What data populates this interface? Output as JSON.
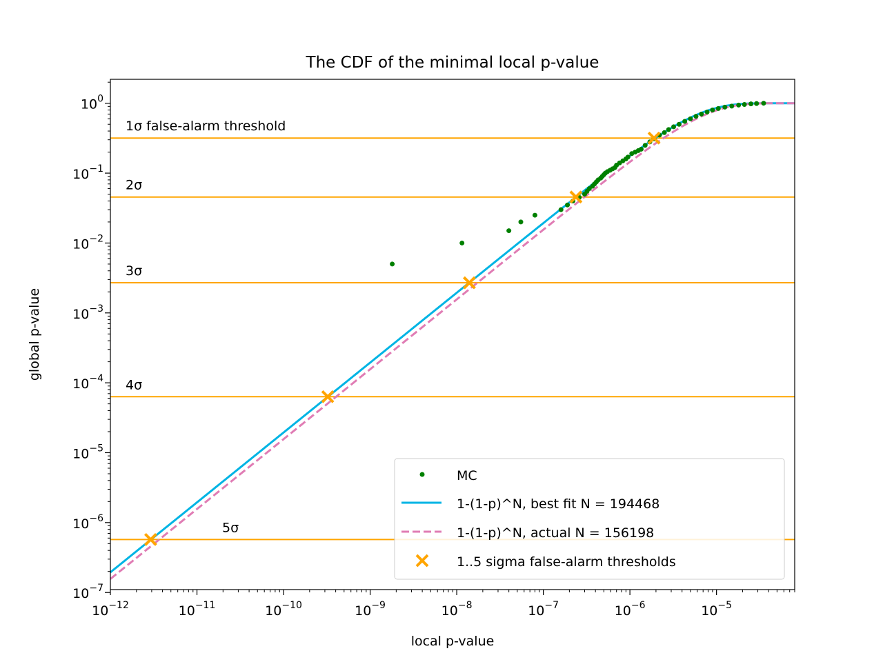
{
  "chart_data": {
    "type": "scatter",
    "title": "The CDF of the minimal local p-value",
    "xlabel": "local p-value",
    "ylabel": "global p-value",
    "xscale": "log",
    "yscale": "log",
    "xlim": [
      1e-12,
      8e-05
    ],
    "ylim": [
      1.1e-07,
      2.2
    ],
    "xticks": [
      {
        "base": "10",
        "exp": "−12",
        "value": 1e-12
      },
      {
        "base": "10",
        "exp": "−11",
        "value": 1e-11
      },
      {
        "base": "10",
        "exp": "−10",
        "value": 1e-10
      },
      {
        "base": "10",
        "exp": "−9",
        "value": 1e-09
      },
      {
        "base": "10",
        "exp": "−8",
        "value": 1e-08
      },
      {
        "base": "10",
        "exp": "−7",
        "value": 1e-07
      },
      {
        "base": "10",
        "exp": "−6",
        "value": 1e-06
      },
      {
        "base": "10",
        "exp": "−5",
        "value": 1e-05
      }
    ],
    "yticks": [
      {
        "base": "10",
        "exp": "0",
        "value": 1
      },
      {
        "base": "10",
        "exp": "−1",
        "value": 0.1
      },
      {
        "base": "10",
        "exp": "−2",
        "value": 0.01
      },
      {
        "base": "10",
        "exp": "−3",
        "value": 0.001
      },
      {
        "base": "10",
        "exp": "−4",
        "value": 0.0001
      },
      {
        "base": "10",
        "exp": "−5",
        "value": 1e-05
      },
      {
        "base": "10",
        "exp": "−6",
        "value": 1e-06
      },
      {
        "base": "10",
        "exp": "−7",
        "value": 1e-07
      }
    ],
    "thresholds": [
      {
        "label": "1σ false-alarm threshold",
        "global_p": 0.3173
      },
      {
        "label": "2σ",
        "global_p": 0.0455
      },
      {
        "label": "3σ",
        "global_p": 0.0027
      },
      {
        "label": "4σ",
        "global_p": 6.33e-05
      },
      {
        "label": "5σ",
        "global_p": 5.73e-07
      }
    ],
    "series": [
      {
        "name": "MC",
        "kind": "scatter",
        "color": "#008000",
        "points": [
          [
            1.8e-09,
            0.005
          ],
          [
            1.15e-08,
            0.01
          ],
          [
            4e-08,
            0.015
          ],
          [
            5.5e-08,
            0.02
          ],
          [
            8e-08,
            0.025
          ],
          [
            1.6e-07,
            0.03
          ],
          [
            1.9e-07,
            0.035
          ],
          [
            2.2e-07,
            0.04
          ],
          [
            2.6e-07,
            0.045
          ],
          [
            3e-07,
            0.05
          ],
          [
            3.2e-07,
            0.055
          ],
          [
            3.4e-07,
            0.06
          ],
          [
            3.7e-07,
            0.065
          ],
          [
            3.9e-07,
            0.07
          ],
          [
            4.1e-07,
            0.075
          ],
          [
            4.3e-07,
            0.08
          ],
          [
            4.6e-07,
            0.085
          ],
          [
            4.8e-07,
            0.09
          ],
          [
            5e-07,
            0.095
          ],
          [
            5.2e-07,
            0.1
          ],
          [
            5.5e-07,
            0.105
          ],
          [
            5.9e-07,
            0.11
          ],
          [
            6.3e-07,
            0.115
          ],
          [
            6.7e-07,
            0.12
          ],
          [
            7e-07,
            0.13
          ],
          [
            7.6e-07,
            0.14
          ],
          [
            8.3e-07,
            0.15
          ],
          [
            9e-07,
            0.16
          ],
          [
            9.5e-07,
            0.17
          ],
          [
            1.05e-06,
            0.19
          ],
          [
            1.15e-06,
            0.2
          ],
          [
            1.25e-06,
            0.21
          ],
          [
            1.35e-06,
            0.22
          ],
          [
            1.5e-06,
            0.25
          ],
          [
            1.7e-06,
            0.28
          ],
          [
            1.9e-06,
            0.31
          ],
          [
            2.2e-06,
            0.35
          ],
          [
            2.5e-06,
            0.38
          ],
          [
            2.8e-06,
            0.42
          ],
          [
            3.2e-06,
            0.46
          ],
          [
            3.7e-06,
            0.5
          ],
          [
            4.3e-06,
            0.55
          ],
          [
            5e-06,
            0.6
          ],
          [
            5.8e-06,
            0.65
          ],
          [
            6.7e-06,
            0.7
          ],
          [
            7.8e-06,
            0.75
          ],
          [
            9e-06,
            0.8
          ],
          [
            1.05e-05,
            0.84
          ],
          [
            1.25e-05,
            0.88
          ],
          [
            1.5e-05,
            0.91
          ],
          [
            1.8e-05,
            0.94
          ],
          [
            2.1e-05,
            0.96
          ],
          [
            2.5e-05,
            0.98
          ],
          [
            2.9e-05,
            0.99
          ],
          [
            3.5e-05,
            1.0
          ]
        ]
      },
      {
        "name": "1-(1-p)^N, best fit N = 194468",
        "kind": "line",
        "N": 194468,
        "color": "#00b4e4"
      },
      {
        "name": "1-(1-p)^N, actual N = 156198",
        "kind": "dashed-line",
        "N": 156198,
        "color": "#e07cb4"
      },
      {
        "name": "1..5 sigma false-alarm thresholds",
        "kind": "marker-x",
        "color": "#ffa500",
        "points": [
          [
            2.92e-12,
            5.73e-07
          ],
          [
            3.24e-10,
            6.33e-05
          ],
          [
            1.4e-08,
            0.0027
          ],
          [
            2.38e-07,
            0.0455
          ],
          [
            1.9e-06,
            0.3173
          ]
        ]
      }
    ],
    "threshold_color": "#ffa500",
    "legend_position": "lower-right",
    "grid": false
  }
}
